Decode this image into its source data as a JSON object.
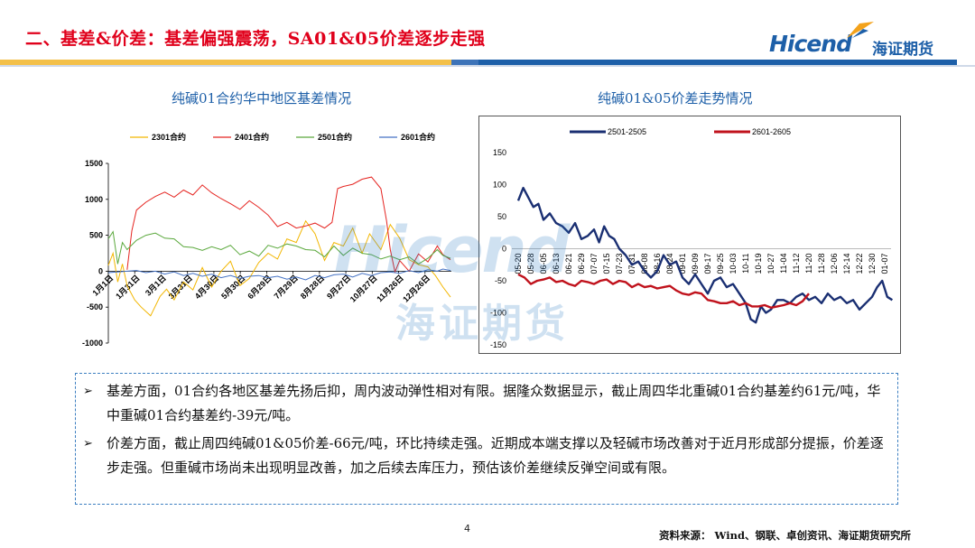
{
  "header": {
    "title": "二、基差&价差：基差偏强震荡，SA01&05价差逐步走强",
    "logo_en": "Hicend",
    "logo_reg": "®",
    "logo_cn": "海证期货"
  },
  "colors": {
    "title_red": "#e0001b",
    "brand_blue": "#1d5fa8",
    "stripe_yellow": "#f3c04a",
    "note_border": "#3d7fc1"
  },
  "watermark": {
    "en": "Hicend",
    "cn": "海证期货"
  },
  "chart_data": [
    {
      "type": "line",
      "title": "纯碱01合约华中地区基差情况",
      "xlabel": "",
      "ylabel": "",
      "ylim": [
        -1000,
        1500
      ],
      "yticks": [
        1500,
        1000,
        500,
        0,
        -500,
        -1000
      ],
      "x_tick_labels": [
        "1月1日",
        "1月31日",
        "3月1日",
        "3月31日",
        "4月30日",
        "5月30日",
        "6月29日",
        "7月29日",
        "8月28日",
        "9月27日",
        "10月27日",
        "11月26日",
        "12月26日"
      ],
      "x_domain": [
        0,
        365
      ],
      "legend_position": "top",
      "grid": false,
      "series": [
        {
          "name": "2301合约",
          "color": "#f2b600",
          "x": [
            0,
            5,
            10,
            15,
            20,
            28,
            35,
            45,
            55,
            62,
            70,
            80,
            90,
            100,
            110,
            120,
            130,
            140,
            150,
            160,
            170,
            180,
            190,
            200,
            210,
            220,
            230,
            240,
            250,
            260,
            270,
            278,
            290,
            300,
            310,
            320,
            330,
            340,
            348,
            356,
            364
          ],
          "values": [
            80,
            250,
            -150,
            100,
            -200,
            -400,
            -500,
            -620,
            -350,
            -250,
            -400,
            -150,
            -260,
            50,
            -220,
            0,
            140,
            -200,
            -100,
            120,
            250,
            170,
            450,
            400,
            700,
            520,
            150,
            400,
            350,
            600,
            250,
            520,
            300,
            650,
            460,
            160,
            90,
            60,
            -60,
            -220,
            -360
          ]
        },
        {
          "name": "2401合约",
          "color": "#e52420",
          "x": [
            20,
            25,
            30,
            40,
            50,
            60,
            70,
            80,
            90,
            100,
            110,
            120,
            130,
            140,
            150,
            160,
            170,
            180,
            190,
            200,
            210,
            220,
            230,
            238,
            244,
            250,
            260,
            270,
            280,
            290,
            296,
            300,
            305,
            310,
            320,
            330,
            340,
            350,
            356,
            364
          ],
          "values": [
            20,
            560,
            850,
            960,
            1040,
            1100,
            1030,
            1130,
            1060,
            1200,
            1090,
            1010,
            940,
            860,
            980,
            890,
            780,
            620,
            680,
            600,
            630,
            670,
            600,
            680,
            1150,
            1180,
            1210,
            1280,
            1310,
            1150,
            700,
            300,
            -10,
            150,
            0,
            240,
            130,
            350,
            230,
            160
          ]
        },
        {
          "name": "2501合约",
          "color": "#5aa83c",
          "x": [
            0,
            5,
            10,
            15,
            20,
            30,
            40,
            50,
            60,
            70,
            80,
            90,
            100,
            110,
            120,
            130,
            140,
            150,
            160,
            170,
            180,
            190,
            200,
            210,
            220,
            230,
            240,
            250,
            260,
            270,
            280,
            290,
            300,
            310,
            320,
            330,
            340,
            350,
            356,
            364
          ],
          "values": [
            450,
            550,
            100,
            400,
            300,
            430,
            500,
            530,
            460,
            450,
            340,
            330,
            290,
            340,
            300,
            360,
            230,
            280,
            210,
            360,
            320,
            380,
            350,
            300,
            290,
            200,
            350,
            220,
            320,
            250,
            230,
            170,
            210,
            160,
            200,
            100,
            180,
            300,
            220,
            180
          ]
        },
        {
          "name": "2601合约",
          "color": "#4472c4",
          "x": [
            0,
            10,
            20,
            30,
            40,
            50,
            60,
            70,
            80,
            90,
            100,
            110,
            120,
            130,
            140,
            150,
            160,
            170,
            180,
            190,
            200,
            210,
            220,
            230,
            240,
            250,
            260,
            270,
            280,
            290,
            300,
            310,
            320,
            330,
            340,
            350,
            356,
            364
          ],
          "values": [
            -20,
            -10,
            0,
            10,
            -20,
            0,
            -40,
            -10,
            -60,
            -30,
            -70,
            -40,
            -90,
            -60,
            -100,
            -70,
            -60,
            -90,
            -70,
            -110,
            -80,
            -120,
            -60,
            -90,
            -50,
            -40,
            -80,
            -30,
            -60,
            -20,
            -10,
            -30,
            10,
            -20,
            20,
            0,
            30,
            10
          ]
        }
      ]
    },
    {
      "type": "line",
      "title": "纯碱01&05价差走势情况",
      "xlabel": "",
      "ylabel": "",
      "ylim": [
        -150,
        150
      ],
      "yticks": [
        150,
        100,
        50,
        0,
        -50,
        -100,
        -150
      ],
      "x_tick_labels": [
        "05-20",
        "05-28",
        "06-05",
        "06-13",
        "06-21",
        "06-29",
        "07-07",
        "07-15",
        "07-23",
        "07-31",
        "08-08",
        "08-16",
        "08-24",
        "09-01",
        "09-09",
        "09-17",
        "09-25",
        "10-03",
        "10-11",
        "10-19",
        "10-27",
        "11-04",
        "11-12",
        "11-20",
        "11-28",
        "12-06",
        "12-14",
        "12-22",
        "12-30",
        "01-07"
      ],
      "legend_position": "top",
      "grid": false,
      "series": [
        {
          "name": "2501-2505",
          "color": "#1a2f72",
          "x": [
            0,
            0.4,
            0.8,
            1.2,
            1.6,
            2.0,
            2.5,
            3.0,
            3.5,
            4.0,
            4.5,
            5.0,
            5.5,
            6.0,
            6.4,
            6.8,
            7.2,
            7.6,
            8.0,
            8.5,
            9.0,
            9.5,
            10.0,
            10.5,
            11.0,
            11.5,
            12.0,
            12.5,
            13.0,
            13.5,
            14.0,
            14.5,
            15.0,
            15.5,
            16.0,
            16.5,
            17.0,
            17.5,
            18.0,
            18.4,
            18.8,
            19.2,
            19.6,
            20.0,
            20.5,
            21.0,
            21.5,
            22.0,
            22.5,
            23.0,
            23.5,
            24.0,
            24.5,
            25.0,
            25.5,
            26.0,
            26.5,
            27.0,
            27.5,
            28.0,
            28.4,
            28.8,
            29.2,
            29.6
          ],
          "values": [
            75,
            95,
            80,
            65,
            70,
            45,
            55,
            40,
            35,
            25,
            40,
            15,
            20,
            30,
            10,
            35,
            20,
            15,
            0,
            -10,
            -25,
            -20,
            -35,
            -45,
            -35,
            -10,
            -25,
            -20,
            -45,
            -55,
            -40,
            -55,
            -70,
            -50,
            -45,
            -60,
            -55,
            -70,
            -85,
            -110,
            -115,
            -90,
            -100,
            -95,
            -80,
            -80,
            -85,
            -75,
            -70,
            -80,
            -75,
            -85,
            -70,
            -80,
            -75,
            -85,
            -80,
            -95,
            -85,
            -75,
            -60,
            -50,
            -75,
            -80
          ]
        },
        {
          "name": "2601-2605",
          "color": "#c0121c",
          "x": [
            0,
            0.5,
            1.0,
            1.5,
            2.0,
            2.5,
            3.0,
            3.5,
            4.0,
            4.5,
            5.0,
            5.5,
            6.0,
            6.5,
            7.0,
            7.5,
            8.0,
            8.5,
            9.0,
            9.5,
            10.0,
            10.5,
            11.0,
            11.5,
            12.0,
            12.5,
            13.0,
            13.5,
            14.0,
            14.5,
            15.0,
            15.5,
            16.0,
            16.5,
            17.0,
            17.5,
            18.0,
            18.5,
            19.0,
            19.5,
            20.0,
            20.5,
            21.0,
            21.5,
            22.0,
            22.5,
            23.0
          ],
          "values": [
            -40,
            -45,
            -55,
            -50,
            -48,
            -45,
            -52,
            -50,
            -55,
            -58,
            -50,
            -52,
            -55,
            -50,
            -48,
            -55,
            -50,
            -52,
            -60,
            -55,
            -60,
            -58,
            -62,
            -60,
            -58,
            -65,
            -70,
            -72,
            -68,
            -70,
            -80,
            -82,
            -85,
            -85,
            -82,
            -88,
            -85,
            -90,
            -90,
            -88,
            -92,
            -90,
            -88,
            -85,
            -88,
            -82,
            -70
          ]
        }
      ]
    }
  ],
  "notes": [
    "基差方面，01合约各地区基差先扬后抑，周内波动弹性相对有限。据隆众数据显示，截止周四华北重碱01合约基差约61元/吨，华中重碱01合约基差约-39元/吨。",
    "价差方面，截止周四纯碱01&05价差-66元/吨，环比持续走强。近期成本端支撑以及轻碱市场改善对于近月形成部分提振，价差逐步走强。但重碱市场尚未出现明显改善，加之后续去库压力，预估该价差继续反弹空间或有限。"
  ],
  "bullet_symbol": "➢",
  "footer": {
    "page_number": "4",
    "source": "资料来源：   Wind、钢联、卓创资讯、海证期货研究所"
  }
}
